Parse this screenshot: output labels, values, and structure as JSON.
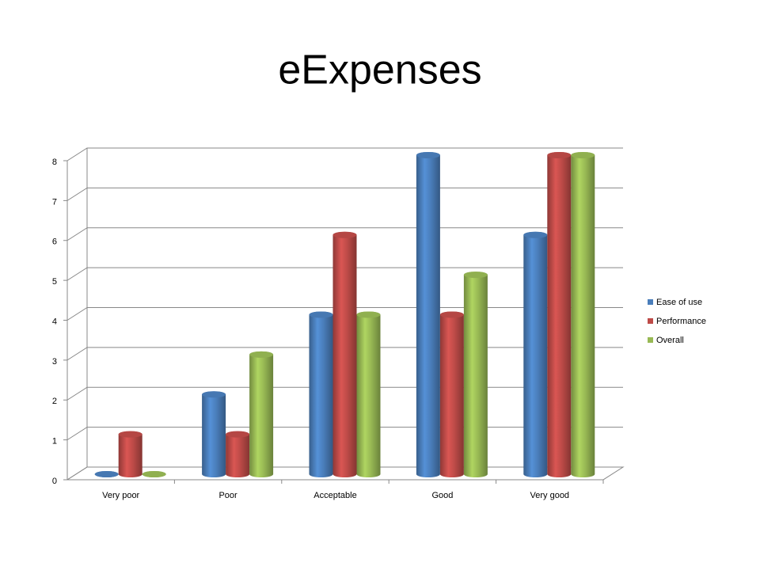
{
  "chart_data": {
    "type": "bar",
    "title": "eExpenses",
    "categories": [
      "Very poor",
      "Poor",
      "Acceptable",
      "Good",
      "Very good"
    ],
    "series": [
      {
        "name": "Ease of use",
        "color": "#4a7ebb",
        "values": [
          0,
          2,
          4,
          8,
          6
        ]
      },
      {
        "name": "Performance",
        "color": "#be4b48",
        "values": [
          1,
          1,
          6,
          4,
          8
        ]
      },
      {
        "name": "Overall",
        "color": "#98b954",
        "values": [
          0,
          3,
          4,
          5,
          8
        ]
      }
    ],
    "ylim": [
      0,
      8
    ],
    "yticks": [
      0,
      1,
      2,
      3,
      4,
      5,
      6,
      7,
      8
    ],
    "grid": true,
    "legend": "right"
  }
}
